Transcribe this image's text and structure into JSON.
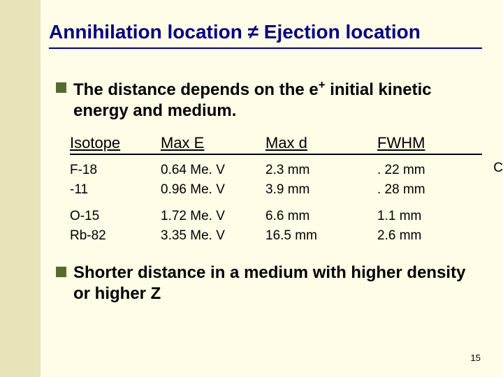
{
  "colors": {
    "page_bg": "#fffde7",
    "band_bg": "#e6e4b8",
    "title_color": "#000080",
    "bullet_color": "#556b2f",
    "text_color": "#000000",
    "rule_color": "#000000"
  },
  "title": "Annihilation location ≠ Ejection location",
  "bullet1_html": "The distance depends on the e<sup>+</sup> initial kinetic energy and medium.",
  "bullet2": "Shorter distance in a medium with higher density or higher Z",
  "table": {
    "headers": {
      "iso": "Isotope",
      "maxe": "Max E",
      "maxd": "Max d",
      "fwhm": "FWHM"
    },
    "rows": [
      {
        "iso": "F-18",
        "maxe": "0.64 Me. V",
        "maxd": "2.3 mm",
        "fwhm": ". 22 mm"
      },
      {
        "iso": "-11",
        "maxe": "0.96 Me. V",
        "maxd": "3.9 mm",
        "fwhm": ". 28 mm"
      },
      {
        "iso": "O-15",
        "maxe": "1.72 Me. V",
        "maxd": "6.6 mm",
        "fwhm": "1.1 mm"
      },
      {
        "iso": "Rb-82",
        "maxe": "3.35 Me. V",
        "maxd": "16.5 mm",
        "fwhm": "2.6 mm"
      }
    ],
    "stray": "C",
    "gap_after_row_index": 1
  },
  "page_number": "15"
}
